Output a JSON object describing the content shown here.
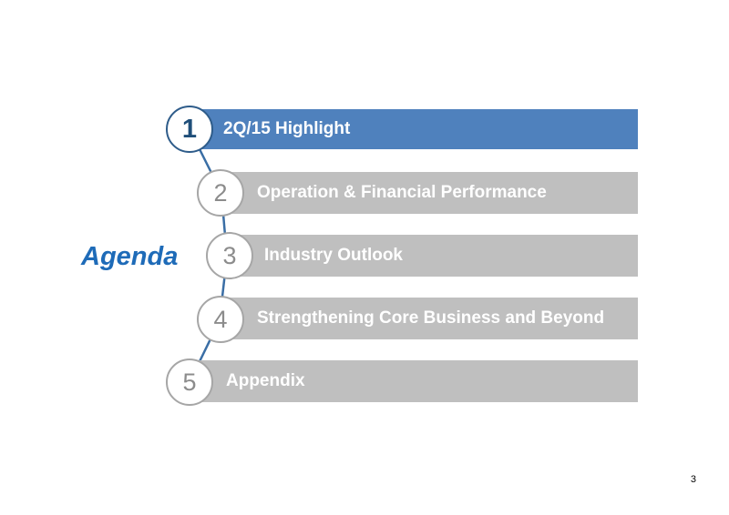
{
  "title": "Agenda",
  "items": [
    {
      "number": "1",
      "label": "2Q/15 Highlight",
      "active": true
    },
    {
      "number": "2",
      "label": "Operation & Financial Performance",
      "active": false
    },
    {
      "number": "3",
      "label": "Industry Outlook",
      "active": false
    },
    {
      "number": "4",
      "label": "Strengthening Core Business and Beyond",
      "active": false
    },
    {
      "number": "5",
      "label": "Appendix",
      "active": false
    }
  ],
  "page_number": "3",
  "colors": {
    "active_bar": "#4f81bd",
    "inactive_bar": "#bfbfbf",
    "title": "#1e6bb8",
    "connector": "#3a6ea5"
  }
}
